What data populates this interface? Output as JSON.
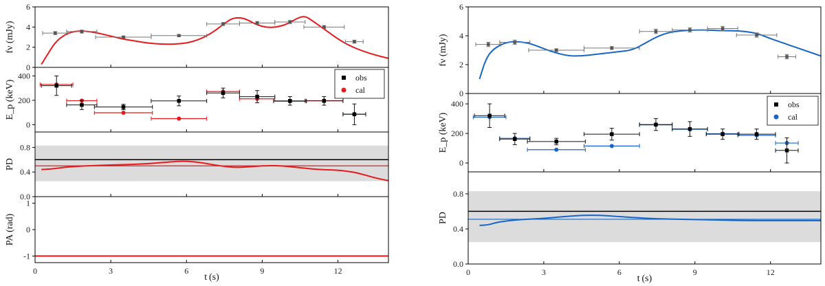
{
  "chart_data": [
    {
      "type": "scatter",
      "figure": "left",
      "x_tick_labels": [
        "0",
        "3",
        "6",
        "9",
        "12"
      ],
      "xlabel": "t (s)",
      "xlim": [
        0,
        14
      ],
      "panels": [
        {
          "id": "flux",
          "ylabel": "fν (mJy)",
          "ylim": [
            0,
            6
          ],
          "y_ticks": [
            0,
            2,
            4,
            6
          ],
          "y_tick_labels": [
            "0",
            "2",
            "4",
            "6"
          ],
          "obs_points": [
            {
              "x": 0.8,
              "y": 3.4,
              "xerr_low": 0.5,
              "xerr_high": 0.5,
              "yerr": 0.15
            },
            {
              "x": 1.85,
              "y": 3.55,
              "xerr_low": 0.6,
              "xerr_high": 0.6,
              "yerr": 0.15
            },
            {
              "x": 3.5,
              "y": 3.0,
              "xerr_low": 1.1,
              "xerr_high": 1.1,
              "yerr": 0.1
            },
            {
              "x": 5.7,
              "y": 3.15,
              "xerr_low": 1.1,
              "xerr_high": 1.1,
              "yerr": 0.1
            },
            {
              "x": 7.45,
              "y": 4.3,
              "xerr_low": 0.65,
              "xerr_high": 0.65,
              "yerr": 0.15
            },
            {
              "x": 8.8,
              "y": 4.4,
              "xerr_low": 0.7,
              "xerr_high": 0.7,
              "yerr": 0.15
            },
            {
              "x": 10.1,
              "y": 4.5,
              "xerr_low": 0.6,
              "xerr_high": 0.6,
              "yerr": 0.15
            },
            {
              "x": 11.45,
              "y": 4.0,
              "xerr_low": 0.8,
              "xerr_high": 0.8,
              "yerr": 0.15
            },
            {
              "x": 12.65,
              "y": 2.55,
              "xerr_low": 0.35,
              "xerr_high": 0.35,
              "yerr": 0.15
            }
          ],
          "model_curve": {
            "x": [
              0.25,
              0.5,
              0.8,
              1.2,
              1.6,
              2.0,
              2.5,
              3.0,
              3.5,
              4.0,
              4.5,
              5.0,
              5.5,
              6.0,
              6.5,
              7.0,
              7.5,
              7.8,
              8.1,
              8.4,
              8.8,
              9.2,
              9.6,
              10.0,
              10.4,
              10.7,
              11.0,
              11.4,
              12.0,
              12.5,
              13.0,
              13.5,
              14.0
            ],
            "y": [
              0.3,
              1.3,
              2.5,
              3.3,
              3.6,
              3.6,
              3.4,
              3.1,
              2.8,
              2.6,
              2.4,
              2.3,
              2.3,
              2.4,
              2.75,
              3.4,
              4.35,
              4.85,
              4.95,
              4.75,
              4.2,
              3.95,
              4.0,
              4.3,
              4.9,
              5.1,
              4.6,
              3.9,
              2.8,
              2.1,
              1.6,
              1.2,
              0.9
            ]
          }
        },
        {
          "id": "ep",
          "ylabel": "E_p (keV)",
          "ylim": [
            -60,
            470
          ],
          "y_ticks": [
            0,
            200,
            400
          ],
          "y_tick_labels": [
            "0",
            "200",
            "400"
          ],
          "legend": {
            "position": "top-right",
            "entries": [
              "obs",
              "cal"
            ]
          },
          "obs_points": [
            {
              "x": 0.85,
              "y": 320,
              "xerr_low": 0.6,
              "xerr_high": 0.6,
              "yerr": 80
            },
            {
              "x": 1.85,
              "y": 162,
              "xerr_low": 0.6,
              "xerr_high": 0.6,
              "yerr": 38
            },
            {
              "x": 3.5,
              "y": 145,
              "xerr_low": 1.15,
              "xerr_high": 1.15,
              "yerr": 22
            },
            {
              "x": 5.7,
              "y": 195,
              "xerr_low": 1.1,
              "xerr_high": 1.1,
              "yerr": 40
            },
            {
              "x": 7.45,
              "y": 260,
              "xerr_low": 0.65,
              "xerr_high": 0.65,
              "yerr": 40
            },
            {
              "x": 8.8,
              "y": 230,
              "xerr_low": 0.7,
              "xerr_high": 0.7,
              "yerr": 50
            },
            {
              "x": 10.1,
              "y": 195,
              "xerr_low": 0.65,
              "xerr_high": 0.65,
              "yerr": 35
            },
            {
              "x": 11.45,
              "y": 195,
              "xerr_low": 0.75,
              "xerr_high": 0.75,
              "yerr": 35
            },
            {
              "x": 12.65,
              "y": 85,
              "xerr_low": 0.45,
              "xerr_high": 0.45,
              "yerr": 85
            }
          ],
          "cal_points": [
            {
              "x": 0.85,
              "y": 330,
              "xerr_low": 0.65,
              "xerr_high": 0.65
            },
            {
              "x": 1.85,
              "y": 197,
              "xerr_low": 0.6,
              "xerr_high": 0.6
            },
            {
              "x": 3.5,
              "y": 98,
              "xerr_low": 1.15,
              "xerr_high": 1.15
            },
            {
              "x": 5.7,
              "y": 50,
              "xerr_low": 1.1,
              "xerr_high": 1.1
            },
            {
              "x": 7.45,
              "y": 272,
              "xerr_low": 0.65,
              "xerr_high": 0.65
            },
            {
              "x": 8.8,
              "y": 212,
              "xerr_low": 0.7,
              "xerr_high": 0.7
            },
            {
              "x": 10.1,
              "y": 192,
              "xerr_low": 0.65,
              "xerr_high": 0.65
            },
            {
              "x": 11.45,
              "y": 197,
              "xerr_low": 0.75,
              "xerr_high": 0.75
            },
            {
              "x": 12.65,
              "y": 87,
              "xerr_low": 0.45,
              "xerr_high": 0.45
            }
          ]
        },
        {
          "id": "pd",
          "ylabel": "PD",
          "ylim": [
            0,
            1.05
          ],
          "y_ticks": [
            0,
            0.4,
            0.8
          ],
          "y_tick_labels": [
            "0.0",
            "0.4",
            "0.8"
          ],
          "observed_band": [
            0.25,
            0.83
          ],
          "observed_value": 0.6,
          "reference_line": 0.5,
          "model_curve": {
            "x": [
              0.25,
              0.7,
              1.2,
              2.0,
              3.0,
              4.0,
              5.0,
              5.8,
              6.5,
              7.3,
              8.0,
              8.6,
              9.2,
              9.8,
              10.5,
              11.2,
              12.0,
              12.6,
              13.0,
              13.5,
              14.0
            ],
            "y": [
              0.44,
              0.45,
              0.48,
              0.5,
              0.515,
              0.525,
              0.55,
              0.58,
              0.56,
              0.5,
              0.47,
              0.49,
              0.505,
              0.5,
              0.47,
              0.44,
              0.43,
              0.4,
              0.36,
              0.3,
              0.26
            ]
          }
        },
        {
          "id": "pa",
          "ylabel": "PA (rad)",
          "ylim": [
            -1.25,
            1.25
          ],
          "y_ticks": [
            -1,
            0,
            1
          ],
          "y_tick_labels": [
            "-1",
            "0",
            "1"
          ],
          "model_curve": {
            "x": [
              0.0,
              14.0
            ],
            "y": [
              -1.0,
              -1.0
            ]
          }
        }
      ]
    },
    {
      "type": "scatter",
      "figure": "right",
      "x_tick_labels": [
        "0",
        "3",
        "6",
        "9",
        "12"
      ],
      "xlabel": "t (s)",
      "xlim": [
        0,
        14
      ],
      "panels": [
        {
          "id": "flux",
          "ylabel": "fν (mJy)",
          "ylim": [
            0,
            6
          ],
          "y_ticks": [
            0,
            2,
            4,
            6
          ],
          "y_tick_labels": [
            "0",
            "2",
            "4",
            "6"
          ],
          "obs_points": [
            {
              "x": 0.8,
              "y": 3.4,
              "xerr_low": 0.5,
              "xerr_high": 0.5,
              "yerr": 0.15
            },
            {
              "x": 1.85,
              "y": 3.55,
              "xerr_low": 0.6,
              "xerr_high": 0.6,
              "yerr": 0.15
            },
            {
              "x": 3.5,
              "y": 3.0,
              "xerr_low": 1.1,
              "xerr_high": 1.1,
              "yerr": 0.1
            },
            {
              "x": 5.7,
              "y": 3.15,
              "xerr_low": 1.1,
              "xerr_high": 1.1,
              "yerr": 0.1
            },
            {
              "x": 7.45,
              "y": 4.3,
              "xerr_low": 0.65,
              "xerr_high": 0.65,
              "yerr": 0.15
            },
            {
              "x": 8.8,
              "y": 4.4,
              "xerr_low": 0.7,
              "xerr_high": 0.7,
              "yerr": 0.15
            },
            {
              "x": 10.1,
              "y": 4.5,
              "xerr_low": 0.6,
              "xerr_high": 0.6,
              "yerr": 0.15
            },
            {
              "x": 11.45,
              "y": 4.05,
              "xerr_low": 0.8,
              "xerr_high": 0.8,
              "yerr": 0.15
            },
            {
              "x": 12.65,
              "y": 2.55,
              "xerr_low": 0.35,
              "xerr_high": 0.35,
              "yerr": 0.15
            }
          ],
          "model_curve": {
            "x": [
              0.45,
              0.7,
              1.0,
              1.5,
              2.0,
              2.5,
              3.0,
              3.5,
              4.0,
              4.5,
              5.0,
              5.5,
              6.0,
              6.5,
              7.0,
              7.5,
              8.0,
              8.5,
              9.0,
              9.5,
              10.0,
              10.5,
              11.0,
              11.5,
              12.0,
              12.5,
              13.0,
              13.5,
              14.0
            ],
            "y": [
              1.0,
              2.4,
              3.1,
              3.55,
              3.6,
              3.45,
              3.1,
              2.8,
              2.6,
              2.6,
              2.7,
              2.8,
              2.9,
              3.0,
              3.45,
              3.95,
              4.25,
              4.35,
              4.4,
              4.4,
              4.35,
              4.35,
              4.3,
              4.15,
              3.8,
              3.5,
              3.2,
              2.9,
              2.6
            ]
          }
        },
        {
          "id": "ep",
          "ylabel": "E_p (keV)",
          "ylim": [
            -60,
            470
          ],
          "y_ticks": [
            0,
            200,
            400
          ],
          "y_tick_labels": [
            "0",
            "200",
            "400"
          ],
          "legend": {
            "position": "top-right",
            "entries": [
              "obs",
              "cal"
            ]
          },
          "obs_points": [
            {
              "x": 0.85,
              "y": 320,
              "xerr_low": 0.6,
              "xerr_high": 0.6,
              "yerr": 80
            },
            {
              "x": 1.85,
              "y": 162,
              "xerr_low": 0.6,
              "xerr_high": 0.6,
              "yerr": 38
            },
            {
              "x": 3.5,
              "y": 145,
              "xerr_low": 1.15,
              "xerr_high": 1.15,
              "yerr": 22
            },
            {
              "x": 5.7,
              "y": 195,
              "xerr_low": 1.1,
              "xerr_high": 1.1,
              "yerr": 40
            },
            {
              "x": 7.45,
              "y": 260,
              "xerr_low": 0.65,
              "xerr_high": 0.65,
              "yerr": 40
            },
            {
              "x": 8.8,
              "y": 230,
              "xerr_low": 0.7,
              "xerr_high": 0.7,
              "yerr": 50
            },
            {
              "x": 10.1,
              "y": 195,
              "xerr_low": 0.65,
              "xerr_high": 0.65,
              "yerr": 35
            },
            {
              "x": 11.45,
              "y": 195,
              "xerr_low": 0.75,
              "xerr_high": 0.75,
              "yerr": 35
            },
            {
              "x": 12.65,
              "y": 85,
              "xerr_low": 0.45,
              "xerr_high": 0.45,
              "yerr": 85
            }
          ],
          "cal_points": [
            {
              "x": 0.85,
              "y": 310,
              "xerr_low": 0.65,
              "xerr_high": 0.65
            },
            {
              "x": 1.85,
              "y": 167,
              "xerr_low": 0.6,
              "xerr_high": 0.6
            },
            {
              "x": 3.5,
              "y": 90,
              "xerr_low": 1.15,
              "xerr_high": 1.15
            },
            {
              "x": 5.7,
              "y": 115,
              "xerr_low": 1.1,
              "xerr_high": 1.1
            },
            {
              "x": 7.45,
              "y": 258,
              "xerr_low": 0.65,
              "xerr_high": 0.65
            },
            {
              "x": 8.8,
              "y": 228,
              "xerr_low": 0.7,
              "xerr_high": 0.7
            },
            {
              "x": 10.1,
              "y": 198,
              "xerr_low": 0.65,
              "xerr_high": 0.65
            },
            {
              "x": 11.45,
              "y": 187,
              "xerr_low": 0.75,
              "xerr_high": 0.75
            },
            {
              "x": 12.65,
              "y": 135,
              "xerr_low": 0.45,
              "xerr_high": 0.45
            }
          ]
        },
        {
          "id": "pd",
          "ylabel": "PD",
          "ylim": [
            0,
            1.05
          ],
          "y_ticks": [
            0,
            0.4,
            0.8
          ],
          "y_tick_labels": [
            "0.0",
            "0.4",
            "0.8"
          ],
          "observed_band": [
            0.25,
            0.83
          ],
          "observed_value": 0.6,
          "reference_line": 0.51,
          "model_curve": {
            "x": [
              0.45,
              0.8,
              1.2,
              2.0,
              3.0,
              3.8,
              4.5,
              5.2,
              5.8,
              6.5,
              7.5,
              8.5,
              10.0,
              11.0,
              12.0,
              14.0
            ],
            "y": [
              0.44,
              0.445,
              0.48,
              0.505,
              0.52,
              0.54,
              0.555,
              0.555,
              0.545,
              0.53,
              0.515,
              0.51,
              0.5,
              0.495,
              0.495,
              0.495
            ]
          }
        }
      ]
    }
  ],
  "style": {
    "obs_color": "#000000",
    "left_model_color": "#e8191c",
    "right_model_color": "#1565c8",
    "band_color": "#dcdcdc",
    "errorbar_gray": "#777777"
  }
}
